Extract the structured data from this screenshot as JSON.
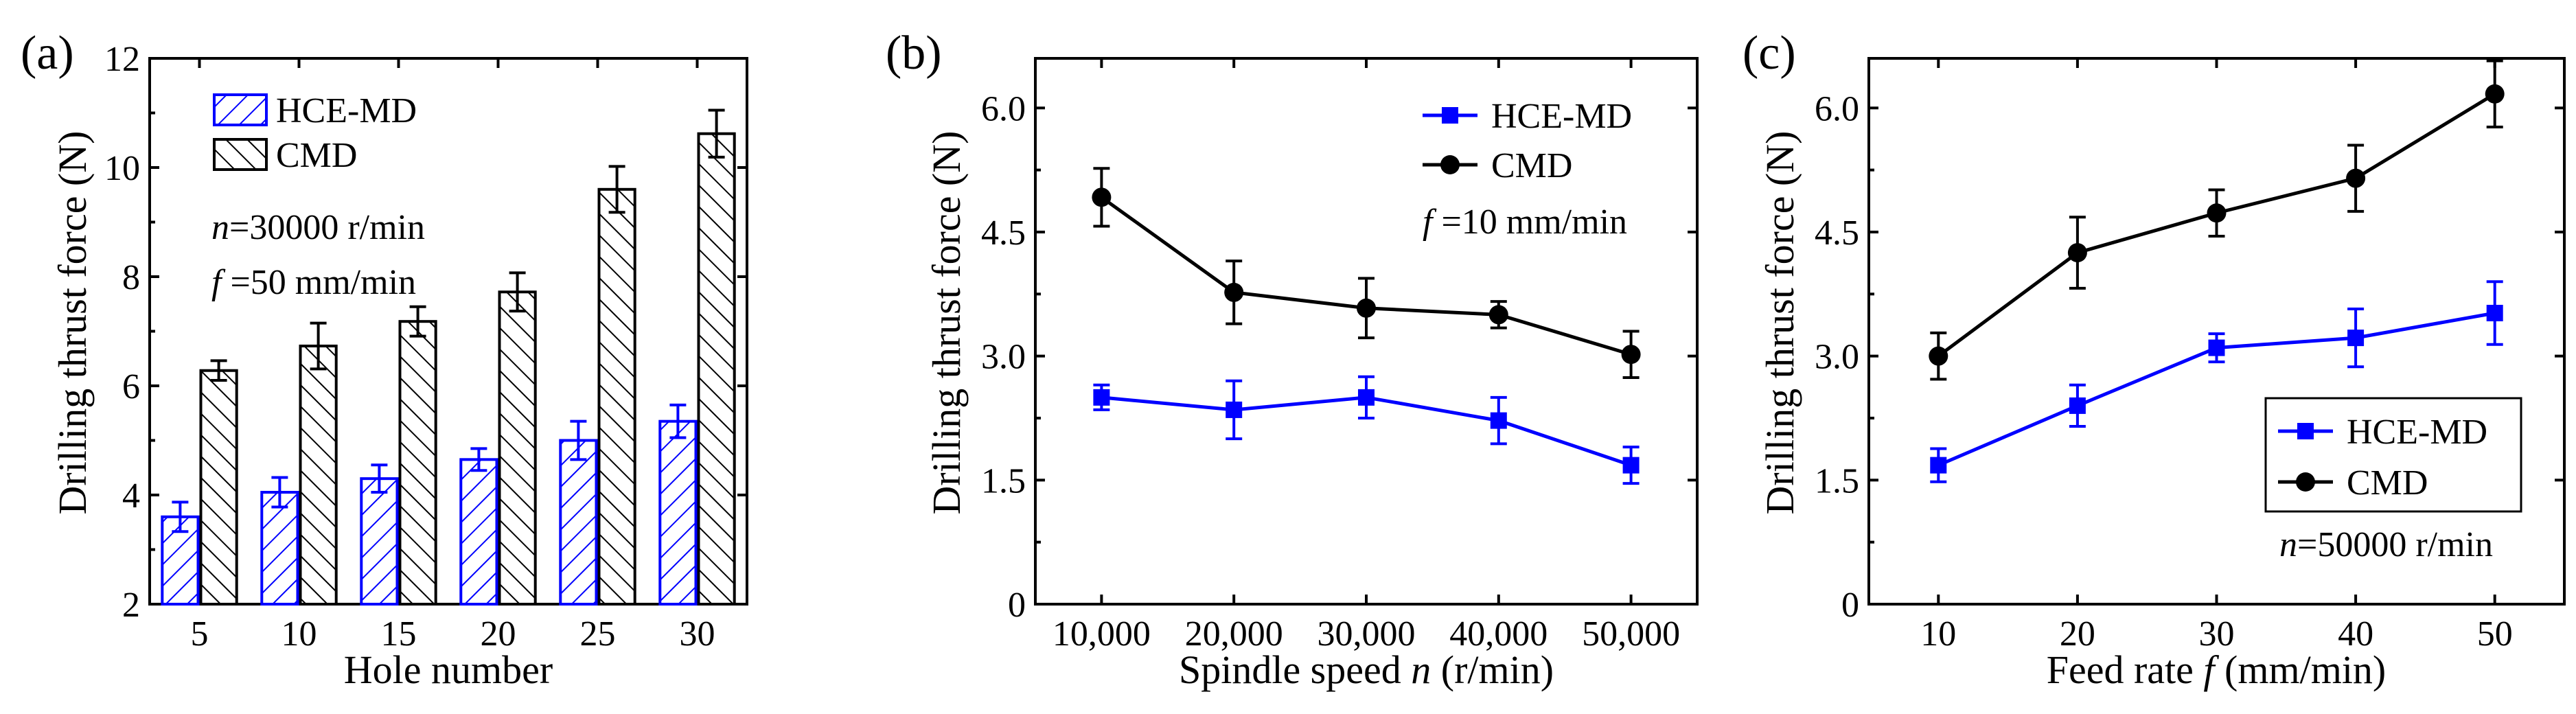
{
  "colors": {
    "hce": "#0000ff",
    "cmd": "#000000"
  },
  "chart_data": [
    {
      "panel": "(a)",
      "type": "bar",
      "xlabel": "Hole number",
      "ylabel": "Drilling thrust force (N)",
      "categories": [
        "5",
        "10",
        "15",
        "20",
        "25",
        "30"
      ],
      "ylim": [
        2,
        12
      ],
      "yticks": [
        2,
        4,
        6,
        8,
        10,
        12
      ],
      "series": [
        {
          "name": "HCE-MD",
          "values": [
            3.6,
            4.05,
            4.3,
            4.65,
            5.0,
            5.35
          ],
          "errors": [
            0.27,
            0.27,
            0.25,
            0.2,
            0.35,
            0.3
          ],
          "pattern": "hatch-blue"
        },
        {
          "name": "CMD",
          "values": [
            6.28,
            6.73,
            7.18,
            7.72,
            9.6,
            10.62
          ],
          "errors": [
            0.18,
            0.42,
            0.27,
            0.35,
            0.42,
            0.43
          ],
          "pattern": "hatch-black"
        }
      ],
      "legend": [
        "HCE-MD",
        "CMD"
      ],
      "annotations": [
        {
          "italic": "n",
          "text": "=30000 r/min"
        },
        {
          "italic": "f",
          "text": " =50 mm/min"
        }
      ]
    },
    {
      "panel": "(b)",
      "type": "line",
      "xlabel_main": "Spindle speed ",
      "xlabel_italic": "n",
      "xlabel_tail": " (r/min)",
      "ylabel": "Drilling thrust force (N)",
      "categories": [
        "10,000",
        "20,000",
        "30,000",
        "40,000",
        "50,000"
      ],
      "ylim": [
        0,
        6.6
      ],
      "yticks": [
        0,
        1.5,
        3.0,
        4.5,
        6.0
      ],
      "ytick_labels": [
        "0",
        "1.5",
        "3.0",
        "4.5",
        "6.0"
      ],
      "series": [
        {
          "name": "HCE-MD",
          "values": [
            2.5,
            2.35,
            2.5,
            2.22,
            1.68
          ],
          "errors": [
            0.15,
            0.35,
            0.25,
            0.28,
            0.22
          ],
          "marker": "square"
        },
        {
          "name": "CMD",
          "values": [
            4.92,
            3.77,
            3.58,
            3.5,
            3.02
          ],
          "errors": [
            0.35,
            0.38,
            0.36,
            0.16,
            0.28
          ],
          "marker": "circle"
        }
      ],
      "legend": [
        "HCE-MD",
        "CMD"
      ],
      "annotations": [
        {
          "italic": "f",
          "text": " =10 mm/min"
        }
      ]
    },
    {
      "panel": "(c)",
      "type": "line",
      "xlabel_main": "Feed rate ",
      "xlabel_italic": "f",
      "xlabel_tail": " (mm/min)",
      "ylabel": "Drilling thrust force (N)",
      "categories": [
        "10",
        "20",
        "30",
        "40",
        "50"
      ],
      "ylim": [
        0,
        6.6
      ],
      "yticks": [
        0,
        1.5,
        3.0,
        4.5,
        6.0
      ],
      "ytick_labels": [
        "0",
        "1.5",
        "3.0",
        "4.5",
        "6.0"
      ],
      "series": [
        {
          "name": "HCE-MD",
          "values": [
            1.68,
            2.4,
            3.1,
            3.22,
            3.52
          ],
          "errors": [
            0.2,
            0.25,
            0.17,
            0.35,
            0.38
          ],
          "marker": "square"
        },
        {
          "name": "CMD",
          "values": [
            3.0,
            4.25,
            4.73,
            5.15,
            6.17
          ],
          "errors": [
            0.28,
            0.43,
            0.28,
            0.4,
            0.4
          ],
          "marker": "circle"
        }
      ],
      "legend": [
        "HCE-MD",
        "CMD"
      ],
      "annotations": [
        {
          "italic": "n",
          "text": "=50000 r/min"
        }
      ]
    }
  ]
}
